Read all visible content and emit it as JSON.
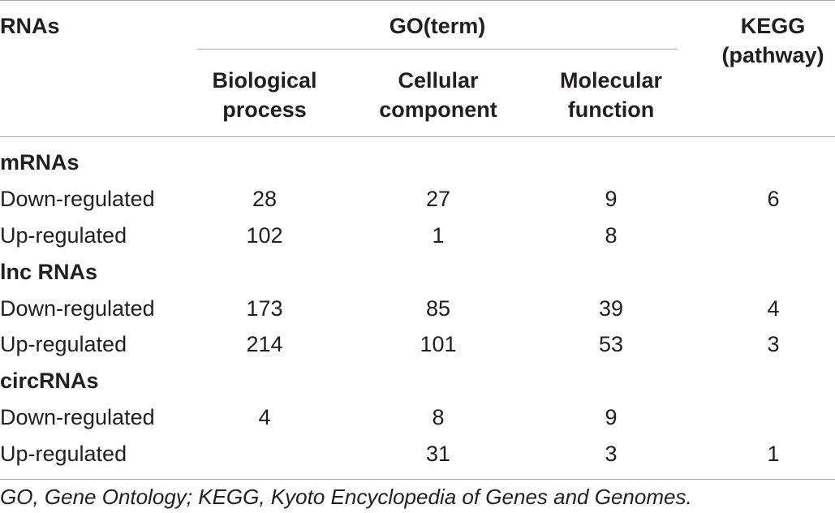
{
  "header": {
    "rnas": "RNAs",
    "go": "GO(term)",
    "kegg_line1": "KEGG",
    "kegg_line2": "(pathway)",
    "bp_line1": "Biological",
    "bp_line2": "process",
    "cc_line1": "Cellular",
    "cc_line2": "component",
    "mf_line1": "Molecular",
    "mf_line2": "function"
  },
  "groups": [
    {
      "name": "mRNAs",
      "rows": [
        {
          "label": "Down-regulated",
          "bp": "28",
          "cc": "27",
          "mf": "9",
          "kegg": "6"
        },
        {
          "label": "Up-regulated",
          "bp": "102",
          "cc": "1",
          "mf": "8",
          "kegg": ""
        }
      ]
    },
    {
      "name": "lnc RNAs",
      "rows": [
        {
          "label": "Down-regulated",
          "bp": "173",
          "cc": "85",
          "mf": "39",
          "kegg": "4"
        },
        {
          "label": "Up-regulated",
          "bp": "214",
          "cc": "101",
          "mf": "53",
          "kegg": "3"
        }
      ]
    },
    {
      "name": "circRNAs",
      "rows": [
        {
          "label": "Down-regulated",
          "bp": "4",
          "cc": "8",
          "mf": "9",
          "kegg": ""
        },
        {
          "label": "Up-regulated",
          "bp": "",
          "cc": "31",
          "mf": "3",
          "kegg": "1"
        }
      ]
    }
  ],
  "footnote": "GO, Gene Ontology; KEGG, Kyoto Encyclopedia of Genes and Genomes."
}
